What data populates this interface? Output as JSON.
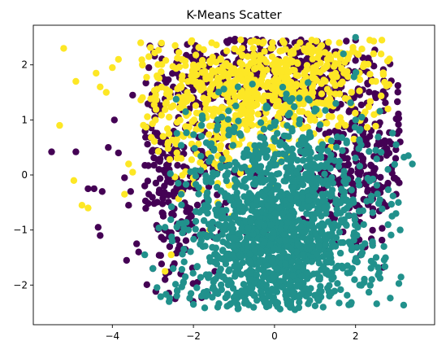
{
  "chart_data": {
    "type": "scatter",
    "title": "K-Means Scatter",
    "xlabel": "",
    "ylabel": "",
    "xlim": [
      -5.95,
      3.95
    ],
    "ylim": [
      -2.72,
      2.72
    ],
    "x_ticks": [
      -4,
      -2,
      0,
      2
    ],
    "y_ticks": [
      -2,
      -1,
      0,
      1,
      2
    ],
    "grid": false,
    "legend": "none",
    "clusters": [
      {
        "color": "#440154",
        "points": [
          [
            -5.5,
            0.42
          ],
          [
            -4.9,
            0.42
          ],
          [
            -4.6,
            -0.25
          ],
          [
            -4.45,
            -0.25
          ],
          [
            -4.25,
            -0.3
          ],
          [
            -4.35,
            -0.95
          ],
          [
            -4.3,
            -1.1
          ],
          [
            -4.1,
            0.5
          ],
          [
            -3.95,
            1.0
          ],
          [
            -3.85,
            0.4
          ],
          [
            -3.7,
            -0.05
          ],
          [
            -3.6,
            -0.55
          ],
          [
            -3.55,
            -0.3
          ],
          [
            -3.4,
            -1.25
          ],
          [
            -3.35,
            -1.4
          ],
          [
            -3.5,
            1.45
          ],
          [
            -3.1,
            1.95
          ],
          [
            -3.2,
            -0.2
          ],
          [
            -3.1,
            -0.35
          ],
          [
            -3.0,
            0.45
          ],
          [
            -2.9,
            1.35
          ],
          [
            -2.85,
            0.1
          ],
          [
            -2.75,
            -0.7
          ],
          [
            -2.6,
            0.55
          ],
          [
            -2.55,
            -1.05
          ],
          [
            -2.5,
            1.6
          ],
          [
            -2.4,
            2.25
          ],
          [
            -2.3,
            -0.15
          ],
          [
            -2.2,
            0.85
          ],
          [
            -2.1,
            1.2
          ],
          [
            -2.05,
            -0.75
          ],
          [
            -1.95,
            2.35
          ],
          [
            -1.85,
            -0.3
          ],
          [
            -1.7,
            0.35
          ],
          [
            -1.6,
            2.1
          ],
          [
            -1.5,
            -0.9
          ],
          [
            -1.4,
            0.7
          ],
          [
            -1.3,
            1.75
          ],
          [
            -1.2,
            -0.5
          ],
          [
            -1.1,
            2.45
          ],
          [
            -1.0,
            0.05
          ],
          [
            -0.9,
            1.55
          ],
          [
            -0.8,
            -1.3
          ],
          [
            -0.7,
            2.2
          ],
          [
            -0.6,
            0.9
          ],
          [
            -0.5,
            -0.2
          ],
          [
            -0.4,
            1.9
          ],
          [
            -0.3,
            2.45
          ],
          [
            -0.2,
            -1.0
          ],
          [
            -0.1,
            1.3
          ],
          [
            0.0,
            -0.45
          ],
          [
            0.1,
            2.1
          ],
          [
            0.2,
            0.65
          ],
          [
            0.3,
            -1.55
          ],
          [
            0.4,
            1.7
          ],
          [
            0.5,
            2.4
          ],
          [
            0.6,
            0.1
          ],
          [
            0.7,
            -0.8
          ],
          [
            0.8,
            1.1
          ],
          [
            0.9,
            2.0
          ],
          [
            1.0,
            -0.3
          ],
          [
            1.1,
            0.45
          ],
          [
            1.2,
            1.45
          ],
          [
            1.3,
            2.3
          ],
          [
            1.4,
            -1.1
          ],
          [
            1.5,
            0.8
          ],
          [
            1.6,
            1.9
          ],
          [
            1.7,
            -0.1
          ],
          [
            1.8,
            0.3
          ],
          [
            1.9,
            1.2
          ],
          [
            2.0,
            2.45
          ],
          [
            2.1,
            -0.6
          ],
          [
            2.2,
            0.55
          ],
          [
            2.3,
            1.65
          ],
          [
            2.4,
            0.0
          ],
          [
            2.5,
            -0.3
          ],
          [
            2.6,
            0.95
          ],
          [
            2.7,
            0.45
          ],
          [
            2.8,
            -0.15
          ],
          [
            2.9,
            0.15
          ],
          [
            3.0,
            -0.35
          ],
          [
            3.1,
            0.6
          ],
          [
            -3.65,
            -1.55
          ],
          [
            -3.0,
            -1.7
          ],
          [
            -2.7,
            -1.9
          ],
          [
            -2.45,
            -2.25
          ],
          [
            -2.2,
            -1.35
          ],
          [
            -1.9,
            -1.95
          ]
        ],
        "cloud": {
          "cx": [
            -3.2,
            3.1
          ],
          "cy": [
            -2.3,
            2.48
          ],
          "n": 900
        }
      },
      {
        "color": "#fde725",
        "points": [
          [
            -5.2,
            2.3
          ],
          [
            -4.9,
            1.7
          ],
          [
            -5.3,
            0.9
          ],
          [
            -4.95,
            -0.1
          ],
          [
            -4.75,
            -0.55
          ],
          [
            -4.6,
            -0.6
          ],
          [
            -4.4,
            1.85
          ],
          [
            -4.3,
            1.6
          ],
          [
            -4.15,
            1.5
          ],
          [
            -4.0,
            1.95
          ],
          [
            -3.85,
            2.1
          ],
          [
            -3.7,
            -0.35
          ],
          [
            -3.6,
            0.2
          ],
          [
            -3.5,
            0.05
          ],
          [
            -3.3,
            2.4
          ],
          [
            -3.1,
            2.15
          ],
          [
            -2.9,
            1.8
          ],
          [
            -2.75,
            0.7
          ],
          [
            -2.6,
            1.05
          ],
          [
            -2.45,
            2.35
          ],
          [
            -2.3,
            0.3
          ],
          [
            -2.15,
            1.5
          ],
          [
            -2.0,
            2.0
          ],
          [
            -1.85,
            0.9
          ],
          [
            -1.7,
            1.3
          ],
          [
            -1.55,
            2.4
          ],
          [
            -1.4,
            0.15
          ],
          [
            -1.25,
            1.0
          ],
          [
            -1.1,
            1.85
          ],
          [
            -0.95,
            0.55
          ],
          [
            -0.8,
            2.3
          ],
          [
            -0.65,
            1.15
          ],
          [
            -0.5,
            2.05
          ],
          [
            -0.35,
            0.75
          ],
          [
            -0.2,
            1.6
          ],
          [
            -0.05,
            2.4
          ],
          [
            0.1,
            1.25
          ],
          [
            0.25,
            0.35
          ],
          [
            0.4,
            2.2
          ],
          [
            0.55,
            1.4
          ],
          [
            0.7,
            0.85
          ],
          [
            0.85,
            2.35
          ],
          [
            1.0,
            1.75
          ],
          [
            1.15,
            0.6
          ],
          [
            1.3,
            2.0
          ],
          [
            1.45,
            1.25
          ],
          [
            1.6,
            2.4
          ],
          [
            1.75,
            0.9
          ],
          [
            1.9,
            1.5
          ],
          [
            2.05,
            2.2
          ],
          [
            2.2,
            1.1
          ],
          [
            2.35,
            2.45
          ],
          [
            2.5,
            1.7
          ],
          [
            2.65,
            2.45
          ],
          [
            2.8,
            1.2
          ],
          [
            -2.7,
            -1.75
          ],
          [
            -2.55,
            -1.45
          ],
          [
            -1.6,
            -1.0
          ],
          [
            -1.05,
            -0.75
          ],
          [
            -0.8,
            -1.4
          ]
        ],
        "cloud": {
          "cx": [
            -3.3,
            2.9
          ],
          "cy": [
            -0.6,
            2.48
          ],
          "n": 800
        }
      },
      {
        "color": "#21918c",
        "points": [
          [
            -2.5,
            -1.7
          ],
          [
            -2.6,
            -2.3
          ],
          [
            -2.4,
            -2.1
          ],
          [
            -2.2,
            -1.85
          ],
          [
            -2.0,
            -2.35
          ],
          [
            -1.8,
            -2.2
          ],
          [
            -1.6,
            -1.5
          ],
          [
            -1.4,
            -2.4
          ],
          [
            -1.2,
            -0.9
          ],
          [
            -1.0,
            -2.3
          ],
          [
            -0.8,
            -0.2
          ],
          [
            -0.6,
            -1.6
          ],
          [
            -0.4,
            0.3
          ],
          [
            -0.2,
            -2.0
          ],
          [
            0.0,
            0.9
          ],
          [
            0.2,
            -0.7
          ],
          [
            0.4,
            -2.35
          ],
          [
            0.6,
            0.55
          ],
          [
            0.8,
            -1.2
          ],
          [
            1.0,
            1.2
          ],
          [
            1.2,
            -0.4
          ],
          [
            1.4,
            -2.15
          ],
          [
            1.6,
            0.25
          ],
          [
            1.8,
            -1.65
          ],
          [
            2.0,
            1.0
          ],
          [
            2.2,
            -0.9
          ],
          [
            2.4,
            -1.9
          ],
          [
            2.5,
            0.45
          ],
          [
            2.6,
            -0.45
          ],
          [
            2.7,
            -1.3
          ],
          [
            2.8,
            0.1
          ],
          [
            2.9,
            -0.75
          ],
          [
            3.0,
            0.55
          ],
          [
            3.1,
            -1.0
          ],
          [
            3.3,
            0.35
          ],
          [
            3.4,
            0.2
          ],
          [
            2.0,
            2.5
          ],
          [
            1.7,
            2.2
          ],
          [
            -1.3,
            1.05
          ],
          [
            -1.8,
            0.9
          ],
          [
            -1.5,
            0.45
          ],
          [
            -0.9,
            1.6
          ],
          [
            -2.3,
            -0.35
          ],
          [
            -2.7,
            -0.95
          ],
          [
            -3.0,
            -1.7
          ],
          [
            -3.2,
            -1.45
          ],
          [
            2.1,
            -2.0
          ],
          [
            1.2,
            -2.4
          ]
        ],
        "cloud": {
          "cx": [
            -3.0,
            3.2
          ],
          "cy": [
            -2.45,
            1.9
          ],
          "n": 1600
        }
      }
    ]
  }
}
